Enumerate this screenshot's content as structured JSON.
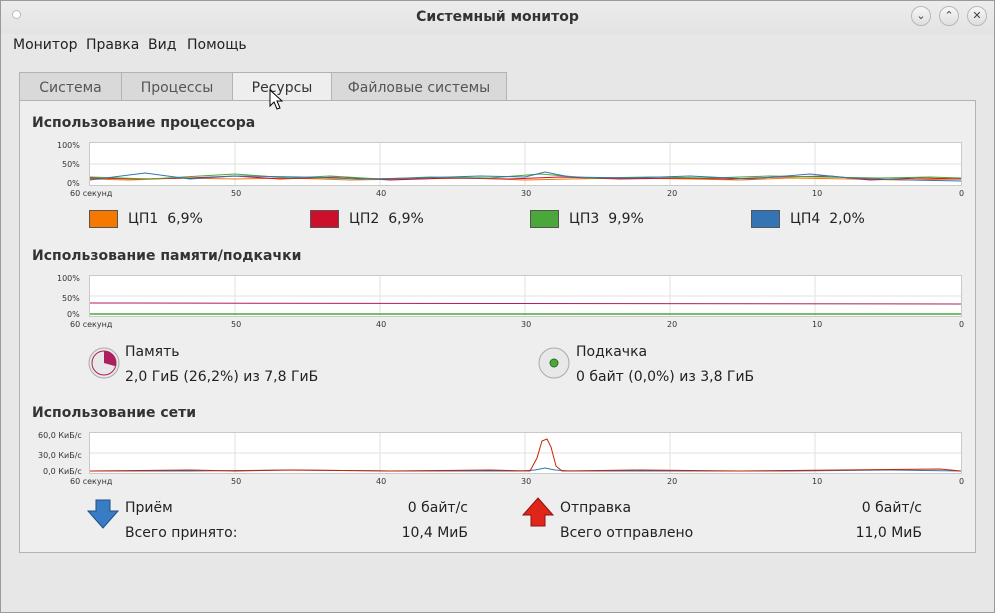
{
  "window": {
    "title": "Системный монитор"
  },
  "menu": [
    "Монитор",
    "Правка",
    "Вид",
    "Помощь"
  ],
  "tabs": [
    "Система",
    "Процессы",
    "Ресурсы",
    "Файловые системы"
  ],
  "active_tab": "Ресурсы",
  "x_ticks": [
    "60 секунд",
    "50",
    "40",
    "30",
    "20",
    "10",
    "0"
  ],
  "cpu": {
    "title": "Использование процессора",
    "y_ticks": [
      "100%",
      "50%",
      "0%"
    ],
    "legend": [
      {
        "label": "ЦП1",
        "value": "6,9%",
        "color": "#f57900"
      },
      {
        "label": "ЦП2",
        "value": "6,9%",
        "color": "#cc0f2a"
      },
      {
        "label": "ЦП3",
        "value": "9,9%",
        "color": "#4aa83a"
      },
      {
        "label": "ЦП4",
        "value": "2,0%",
        "color": "#3474b5"
      }
    ]
  },
  "memory": {
    "title": "Использование памяти/подкачки",
    "y_ticks": [
      "100%",
      "50%",
      "0%"
    ],
    "mem_label": "Память",
    "mem_value": "2,0 ГиБ (26,2%) из 7,8 ГиБ",
    "mem_color": "#ad1f5d",
    "swap_label": "Подкачка",
    "swap_value": "0 байт (0,0%) из 3,8 ГиБ",
    "swap_color": "#4aa83a"
  },
  "network": {
    "title": "Использование сети",
    "y_ticks": [
      "60,0 КиБ/с",
      "30,0 КиБ/с",
      "0,0 КиБ/с"
    ],
    "recv_label": "Приём",
    "recv_rate": "0 байт/с",
    "recv_total_label": "Всего принято:",
    "recv_total": "10,4 МиБ",
    "send_label": "Отправка",
    "send_rate": "0 байт/с",
    "send_total_label": "Всего отправлено",
    "send_total": "11,0 МиБ",
    "recv_color": "#3474b5",
    "send_color": "#cc2200"
  }
}
